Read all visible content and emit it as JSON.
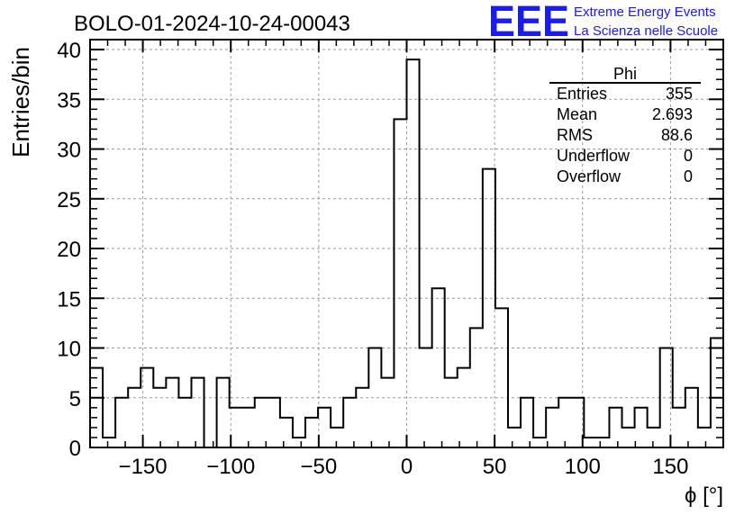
{
  "header": {
    "title": "BOLO-01-2024-10-24-00043",
    "logo_text": "EEE",
    "brand_line1": "Extreme Energy Events",
    "brand_line2": "La Scienza nelle Scuole",
    "brand_color": "#1a1aff"
  },
  "stats_box": {
    "title": "Phi",
    "rows": [
      {
        "label": "Entries",
        "value": "355"
      },
      {
        "label": "Mean",
        "value": "2.693"
      },
      {
        "label": "RMS",
        "value": "88.6"
      },
      {
        "label": "Underflow",
        "value": "0"
      },
      {
        "label": "Overflow",
        "value": "0"
      }
    ]
  },
  "chart_data": {
    "type": "histogram",
    "title": "BOLO-01-2024-10-24-00043",
    "xlabel": "ϕ [°]",
    "ylabel": "Entries/bin",
    "xlim": [
      -180,
      180
    ],
    "ylim": [
      0,
      41
    ],
    "bin_width": 7.2,
    "grid": true,
    "line_color": "#000000",
    "x_ticks": [
      -150,
      -100,
      -50,
      0,
      50,
      100,
      150
    ],
    "x_tick_labels": [
      "−150",
      "−100",
      "−50",
      "0",
      "50",
      "100",
      "150"
    ],
    "y_ticks": [
      0,
      5,
      10,
      15,
      20,
      25,
      30,
      35,
      40
    ],
    "y_tick_labels": [
      "0",
      "5",
      "10",
      "15",
      "20",
      "25",
      "30",
      "35",
      "40"
    ],
    "bin_contents": [
      8,
      1,
      5,
      6,
      8,
      6,
      7,
      5,
      7,
      0,
      7,
      4,
      4,
      5,
      5,
      3,
      1,
      3,
      4,
      2,
      5,
      6,
      10,
      7,
      33,
      39,
      10,
      16,
      7,
      8,
      12,
      28,
      14,
      2,
      5,
      1,
      4,
      5,
      5,
      1,
      1,
      4,
      2,
      4,
      2,
      10,
      4,
      6,
      2,
      11
    ]
  }
}
